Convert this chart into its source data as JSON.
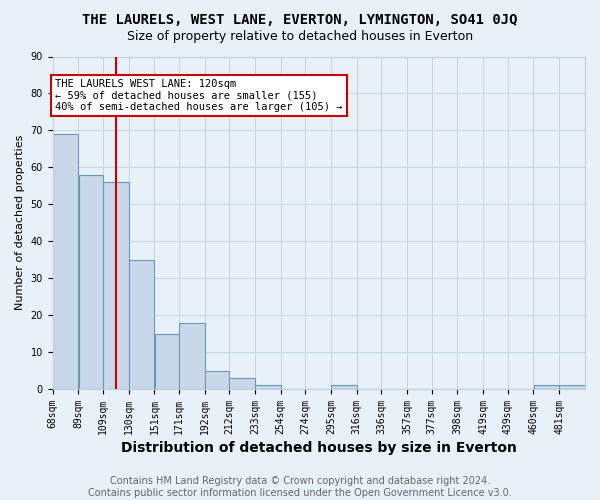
{
  "title": "THE LAURELS, WEST LANE, EVERTON, LYMINGTON, SO41 0JQ",
  "subtitle": "Size of property relative to detached houses in Everton",
  "xlabel": "Distribution of detached houses by size in Everton",
  "ylabel": "Number of detached properties",
  "footer_line1": "Contains HM Land Registry data © Crown copyright and database right 2024.",
  "footer_line2": "Contains public sector information licensed under the Open Government Licence v3.0.",
  "bin_labels": [
    "68sqm",
    "89sqm",
    "109sqm",
    "130sqm",
    "151sqm",
    "171sqm",
    "192sqm",
    "212sqm",
    "233sqm",
    "254sqm",
    "274sqm",
    "295sqm",
    "316sqm",
    "336sqm",
    "357sqm",
    "377sqm",
    "398sqm",
    "419sqm",
    "439sqm",
    "460sqm",
    "481sqm"
  ],
  "bar_heights": [
    69,
    58,
    56,
    35,
    15,
    18,
    5,
    3,
    1,
    0,
    0,
    1,
    0,
    0,
    0,
    0,
    0,
    0,
    0,
    1,
    1
  ],
  "bar_color": "#c8d8e8",
  "bar_edge_color": "#6699bb",
  "red_line_x": 120,
  "bin_edges": [
    68,
    89,
    109,
    130,
    151,
    171,
    192,
    212,
    233,
    254,
    274,
    295,
    316,
    336,
    357,
    377,
    398,
    419,
    439,
    460,
    481,
    502
  ],
  "ylim": [
    0,
    90
  ],
  "yticks": [
    0,
    10,
    20,
    30,
    40,
    50,
    60,
    70,
    80,
    90
  ],
  "annotation_line1": "THE LAURELS WEST LANE: 120sqm",
  "annotation_line2": "← 59% of detached houses are smaller (155)",
  "annotation_line3": "40% of semi-detached houses are larger (105) →",
  "annotation_box_facecolor": "#ffffff",
  "annotation_border_color": "#cc0000",
  "grid_color": "#c0d0e0",
  "background_color": "#e8f0f8",
  "title_fontsize": 10,
  "subtitle_fontsize": 9,
  "xlabel_fontsize": 9,
  "ylabel_fontsize": 8,
  "tick_fontsize": 7,
  "annotation_fontsize": 7.5,
  "footer_fontsize": 7
}
